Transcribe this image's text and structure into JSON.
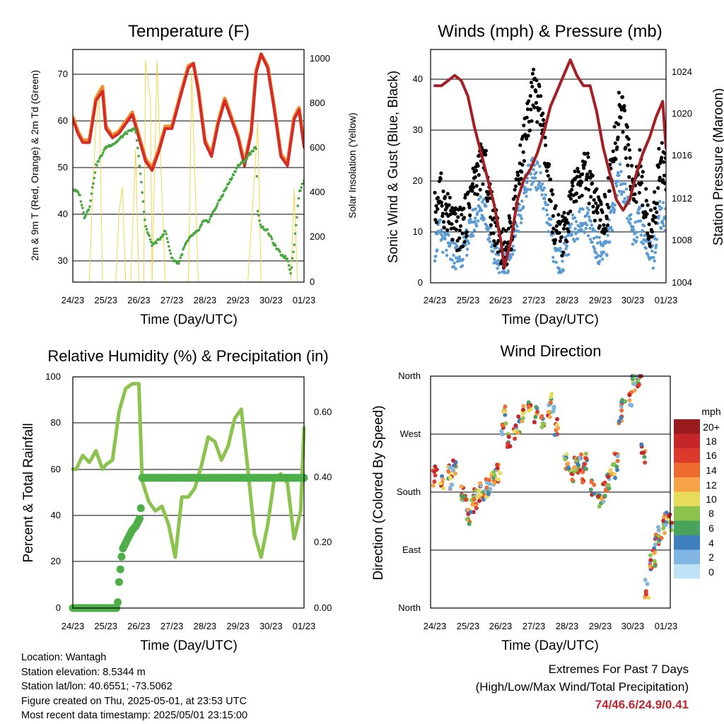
{
  "x_ticks": [
    "24/23",
    "25/23",
    "26/23",
    "27/23",
    "28/23",
    "29/23",
    "30/23",
    "01/23"
  ],
  "charts": {
    "temperature": {
      "title": "Temperature (F)",
      "xlabel": "Time (Day/UTC)",
      "ylabel_left": "2m & 9m T (Red, Orange) & 2m Td (Green)",
      "ylabel_right": "Solar Insolation (Yellow)",
      "y_ticks": [
        "30",
        "40",
        "50",
        "60",
        "70"
      ],
      "y2_ticks": [
        "0",
        "200",
        "400",
        "600",
        "800",
        "1000"
      ]
    },
    "winds": {
      "title": "Winds (mph) & Pressure (mb)",
      "xlabel": "Time (Day/UTC)",
      "ylabel_left": "Sonic Wind & Gust (Blue, Black)",
      "ylabel_right": "Station Pressure (Maroon)",
      "y_ticks": [
        "0",
        "10",
        "20",
        "30",
        "40"
      ],
      "y2_ticks": [
        "1004",
        "1008",
        "1012",
        "1016",
        "1020",
        "1024"
      ]
    },
    "humidity": {
      "title": "Relative Humidity (%) & Precipitation (in)",
      "xlabel": "Time (Day/UTC)",
      "ylabel_left": "Percent & Total Rainfall",
      "y_ticks": [
        "0",
        "20",
        "40",
        "60",
        "80",
        "100"
      ],
      "y2_ticks": [
        "0.00",
        "0.20",
        "0.40",
        "0.60"
      ]
    },
    "direction": {
      "title": "Wind Direction",
      "xlabel": "Time (Day/UTC)",
      "ylabel_left": "Direction (Colored By Speed)",
      "y_ticks": [
        "North",
        "East",
        "South",
        "West",
        "North"
      ],
      "legend_title": "mph",
      "legend_labels": [
        "20+",
        "18",
        "16",
        "14",
        "12",
        "10",
        "8",
        "6",
        "4",
        "2",
        "0"
      ],
      "legend_colors": [
        "#9a1b1e",
        "#c4262a",
        "#dc3a2a",
        "#ef6a2e",
        "#f8a345",
        "#e7dc5a",
        "#8cc34d",
        "#4aa35c",
        "#3f7fbf",
        "#7fb6e3",
        "#bfe2f7"
      ]
    }
  },
  "chart_data": [
    {
      "type": "line",
      "title": "Temperature (F)",
      "x": [
        "24/23",
        "25/23",
        "26/23",
        "27/23",
        "28/23",
        "29/23",
        "30/23",
        "01/23"
      ],
      "ylim": [
        25,
        75
      ],
      "y2lim": [
        0,
        1050
      ],
      "series": [
        {
          "name": "2m T",
          "axis": "left",
          "color": "#d42b27",
          "x": [
            0,
            0.15,
            0.3,
            0.5,
            0.7,
            0.9,
            1.0,
            1.2,
            1.4,
            1.6,
            1.8,
            2.0,
            2.2,
            2.4,
            2.6,
            2.8,
            3.0,
            3.3,
            3.5,
            3.65,
            3.8,
            4.0,
            4.2,
            4.4,
            4.6,
            4.8,
            5.0,
            5.2,
            5.4,
            5.55,
            5.7,
            5.9,
            6.1,
            6.3,
            6.5,
            6.7,
            6.85,
            7.0
          ],
          "y": [
            60,
            57,
            55,
            55,
            64,
            66,
            58,
            56,
            57,
            59,
            61,
            56,
            51,
            49,
            53,
            58,
            58,
            66,
            71,
            72,
            66,
            55,
            52,
            59,
            64,
            60,
            56,
            50,
            57,
            70,
            74,
            71,
            62,
            52,
            50,
            60,
            62,
            54
          ]
        },
        {
          "name": "9m T",
          "axis": "left",
          "color": "#f28b2c",
          "x": [
            0,
            0.15,
            0.3,
            0.5,
            0.7,
            0.9,
            1.0,
            1.2,
            1.4,
            1.6,
            1.8,
            2.0,
            2.2,
            2.4,
            2.6,
            2.8,
            3.0,
            3.3,
            3.5,
            3.65,
            3.8,
            4.0,
            4.2,
            4.4,
            4.6,
            4.8,
            5.0,
            5.2,
            5.4,
            5.55,
            5.7,
            5.9,
            6.1,
            6.3,
            6.5,
            6.7,
            6.85,
            7.0
          ],
          "y": [
            60.5,
            57.5,
            55.5,
            55.5,
            64.5,
            67,
            58.5,
            56.5,
            57.5,
            59.5,
            61.5,
            56.5,
            51.5,
            49.5,
            53.5,
            58.5,
            58.5,
            66.5,
            71.5,
            72,
            66.5,
            55.5,
            52.5,
            59.5,
            64.5,
            60.5,
            56.5,
            50.5,
            57.5,
            70.5,
            74,
            71.5,
            62.5,
            52.5,
            50.5,
            60.5,
            62.5,
            54.5
          ]
        },
        {
          "name": "2m Td",
          "axis": "left",
          "color": "#46a83c",
          "x": [
            0,
            0.2,
            0.35,
            0.5,
            0.7,
            1.0,
            1.3,
            1.6,
            1.9,
            2.05,
            2.2,
            2.4,
            2.6,
            2.8,
            3.0,
            3.2,
            3.4,
            3.6,
            3.8,
            3.95,
            4.1,
            4.4,
            4.7,
            5.0,
            5.2,
            5.4,
            5.55,
            5.6,
            5.7,
            5.9,
            6.1,
            6.3,
            6.5,
            6.6,
            6.7,
            6.85,
            7.0
          ],
          "y": [
            45,
            44,
            39,
            41,
            50,
            54,
            55,
            57,
            58,
            48,
            37,
            33,
            34,
            36,
            30,
            29,
            33,
            35,
            36,
            38,
            38,
            42,
            46,
            50,
            51,
            53,
            54,
            40,
            37,
            36,
            33,
            31,
            30,
            27,
            33,
            44,
            47
          ]
        },
        {
          "name": "Solar Insolation",
          "axis": "right",
          "color": "#f0d64a",
          "x": [
            0,
            0.3,
            0.5,
            0.6,
            0.7,
            0.8,
            0.9,
            1.1,
            1.3,
            1.4,
            1.5,
            1.6,
            1.75,
            1.9,
            2.0,
            2.15,
            2.2,
            2.35,
            2.4,
            2.55,
            2.6,
            2.8,
            2.95,
            3.1,
            3.3,
            3.5,
            3.6,
            3.65,
            3.8,
            4.0,
            4.3,
            4.5,
            4.6,
            4.8,
            5.0,
            5.3,
            5.6,
            5.7,
            5.8,
            6.0,
            6.3,
            6.6,
            6.7,
            6.8,
            7.0
          ],
          "y": [
            0,
            0,
            0,
            420,
            700,
            850,
            0,
            0,
            0,
            320,
            430,
            0,
            0,
            600,
            0,
            0,
            1000,
            820,
            0,
            1000,
            780,
            0,
            0,
            0,
            0,
            0,
            950,
            700,
            0,
            0,
            0,
            0,
            0,
            0,
            0,
            0,
            720,
            0,
            0,
            0,
            0,
            0,
            420,
            0,
            0
          ]
        }
      ]
    },
    {
      "type": "line",
      "title": "Winds (mph) & Pressure (mb)",
      "x": [
        "24/23",
        "25/23",
        "26/23",
        "27/23",
        "28/23",
        "29/23",
        "30/23",
        "01/23"
      ],
      "ylim": [
        0,
        46
      ],
      "y2lim": [
        1004,
        1026.5
      ],
      "series": [
        {
          "name": "Wind Gust",
          "axis": "left",
          "color": "#000000",
          "x": [
            0,
            0.15,
            0.3,
            0.5,
            0.7,
            0.9,
            1.1,
            1.3,
            1.5,
            1.7,
            1.9,
            2.1,
            2.3,
            2.5,
            2.7,
            2.8,
            3.0,
            3.2,
            3.4,
            3.6,
            3.8,
            4.0,
            4.2,
            4.4,
            4.6,
            4.8,
            5.0,
            5.2,
            5.4,
            5.6,
            5.8,
            6.0,
            6.2,
            6.4,
            6.6,
            6.8,
            7.0
          ],
          "y": [
            14,
            18,
            15,
            12,
            10,
            12,
            18,
            22,
            24,
            14,
            10,
            6,
            10,
            20,
            28,
            32,
            38,
            34,
            22,
            12,
            8,
            12,
            18,
            20,
            22,
            16,
            12,
            14,
            24,
            36,
            28,
            18,
            22,
            14,
            10,
            24,
            22
          ]
        },
        {
          "name": "Sonic Wind",
          "axis": "left",
          "color": "#5a9bd4",
          "x": [
            0,
            0.15,
            0.3,
            0.5,
            0.7,
            0.9,
            1.1,
            1.3,
            1.5,
            1.7,
            1.9,
            2.1,
            2.3,
            2.5,
            2.7,
            2.8,
            3.0,
            3.2,
            3.4,
            3.6,
            3.8,
            4.0,
            4.2,
            4.4,
            4.6,
            4.8,
            5.0,
            5.2,
            5.4,
            5.6,
            5.8,
            6.0,
            6.2,
            6.4,
            6.6,
            6.8,
            7.0
          ],
          "y": [
            7,
            10,
            8,
            6,
            5,
            7,
            11,
            14,
            15,
            8,
            5,
            3,
            6,
            12,
            17,
            20,
            22,
            20,
            13,
            7,
            4,
            7,
            11,
            12,
            13,
            9,
            6,
            8,
            14,
            21,
            16,
            10,
            12,
            8,
            5,
            14,
            12
          ]
        },
        {
          "name": "Station Pressure",
          "axis": "right",
          "color": "#a31f24",
          "x": [
            0,
            0.2,
            0.4,
            0.6,
            0.8,
            1.0,
            1.2,
            1.4,
            1.6,
            1.8,
            2.0,
            2.1,
            2.3,
            2.5,
            2.7,
            2.9,
            3.1,
            3.3,
            3.5,
            3.7,
            3.9,
            4.1,
            4.3,
            4.5,
            4.7,
            4.9,
            5.1,
            5.3,
            5.5,
            5.7,
            5.9,
            6.1,
            6.3,
            6.5,
            6.7,
            6.9,
            7.0
          ],
          "y": [
            1023,
            1023,
            1023.5,
            1024,
            1023.5,
            1022,
            1019,
            1016.5,
            1014,
            1011.5,
            1008,
            1005.5,
            1008,
            1012,
            1014,
            1015,
            1016.5,
            1018.5,
            1021,
            1022.5,
            1024,
            1025.5,
            1024,
            1023,
            1023,
            1020.5,
            1017,
            1014.5,
            1012,
            1011,
            1012,
            1014.5,
            1016.5,
            1018,
            1020,
            1021.5,
            1017
          ]
        }
      ]
    },
    {
      "type": "line",
      "title": "Relative Humidity (%) & Precipitation (in)",
      "x": [
        "24/23",
        "25/23",
        "26/23",
        "27/23",
        "28/23",
        "29/23",
        "30/23",
        "01/23"
      ],
      "ylim": [
        0,
        100
      ],
      "y2lim": [
        0,
        0.71
      ],
      "series": [
        {
          "name": "Relative Humidity",
          "axis": "left",
          "color": "#8cc34d",
          "x": [
            0,
            0.1,
            0.3,
            0.5,
            0.7,
            0.9,
            1.0,
            1.2,
            1.4,
            1.6,
            1.8,
            2.0,
            2.1,
            2.3,
            2.5,
            2.7,
            2.9,
            3.1,
            3.3,
            3.5,
            3.7,
            3.9,
            4.1,
            4.3,
            4.5,
            4.7,
            4.9,
            5.1,
            5.3,
            5.5,
            5.7,
            5.9,
            6.1,
            6.3,
            6.5,
            6.7,
            6.9,
            7.0
          ],
          "y": [
            60,
            60,
            66,
            63,
            68,
            60,
            62,
            64,
            85,
            95,
            97,
            97,
            55,
            46,
            42,
            44,
            36,
            22,
            48,
            48,
            52,
            62,
            74,
            72,
            64,
            70,
            82,
            86,
            60,
            32,
            22,
            36,
            56,
            58,
            54,
            30,
            42,
            78
          ]
        },
        {
          "name": "Total Precipitation",
          "axis": "right",
          "color": "#4caf48",
          "x": [
            0,
            0.3,
            0.6,
            0.9,
            1.2,
            1.35,
            1.4,
            1.5,
            1.6,
            1.7,
            1.8,
            1.9,
            2.0,
            2.05,
            2.1,
            2.4,
            2.8,
            3.2,
            3.6,
            4.0,
            4.4,
            4.8,
            5.2,
            5.6,
            6.0,
            6.4,
            6.8,
            7.0
          ],
          "y": [
            0,
            0,
            0,
            0,
            0,
            0,
            0.08,
            0.18,
            0.2,
            0.22,
            0.24,
            0.25,
            0.27,
            0.28,
            0.4,
            0.4,
            0.4,
            0.4,
            0.4,
            0.4,
            0.4,
            0.4,
            0.4,
            0.4,
            0.4,
            0.4,
            0.4,
            0.4
          ]
        }
      ]
    },
    {
      "type": "scatter",
      "title": "Wind Direction",
      "x": [
        "24/23",
        "25/23",
        "26/23",
        "27/23",
        "28/23",
        "29/23",
        "30/23",
        "01/23"
      ],
      "y_categories": [
        "North",
        "East",
        "South",
        "West",
        "North"
      ],
      "ylim": [
        0,
        360
      ],
      "series": [
        {
          "name": "Wind Direction",
          "x": [
            0,
            0.2,
            0.4,
            0.5,
            0.6,
            0.8,
            0.9,
            1.0,
            1.1,
            1.2,
            1.3,
            1.4,
            1.5,
            1.6,
            1.7,
            1.8,
            1.9,
            2.0,
            2.1,
            2.2,
            2.4,
            2.5,
            2.6,
            2.8,
            3.0,
            3.2,
            3.4,
            3.5,
            3.6,
            3.9,
            4.0,
            4.1,
            4.2,
            4.3,
            4.4,
            4.5,
            4.7,
            4.9,
            5.0,
            5.1,
            5.2,
            5.3,
            5.4,
            5.5,
            5.6,
            5.8,
            5.9,
            6.0,
            6.1,
            6.2,
            6.3,
            6.4,
            6.5,
            6.6,
            6.7,
            6.8,
            6.9,
            7.0
          ],
          "y": [
            205,
            190,
            210,
            200,
            215,
            175,
            160,
            145,
            160,
            170,
            175,
            180,
            185,
            190,
            195,
            200,
            210,
            280,
            300,
            265,
            270,
            285,
            300,
            305,
            300,
            290,
            310,
            320,
            280,
            225,
            215,
            205,
            220,
            225,
            210,
            230,
            185,
            170,
            180,
            195,
            200,
            210,
            225,
            300,
            310,
            320,
            360,
            350,
            360,
            240,
            30,
            70,
            80,
            100,
            120,
            130,
            140,
            135
          ]
        }
      ]
    }
  ],
  "footer": {
    "location": "Location: Wantagh",
    "elevation": "Station elevation: 8.5344 m",
    "latlon": "Station lat/lon: 40.6551; -73.5062",
    "created": "Figure created on Thu, 2025-05-01, at 23:53 UTC",
    "recent": "Most recent data timestamp: 2025/05/01 23:15:00",
    "extremes_title": "Extremes For Past 7 Days",
    "extremes_subtitle": "(High/Low/Max Wind/Total Precipitation)",
    "extremes_values": "74/46.6/24.9/0.41"
  }
}
